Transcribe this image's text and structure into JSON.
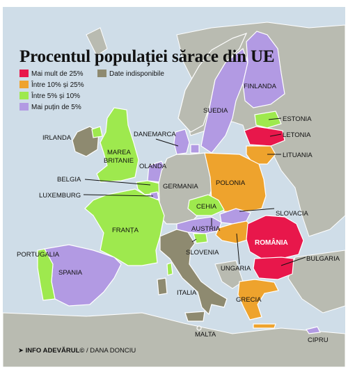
{
  "title": "Procentul populației sărace din UE",
  "legend": [
    {
      "label": "Mai mult de 25%",
      "color": "#e8174b"
    },
    {
      "label": "Între 10% și 25%",
      "color": "#eea32d"
    },
    {
      "label": "Între 5% și 10%",
      "color": "#9ee94e"
    },
    {
      "label": "Mai puțin de 5%",
      "color": "#b29ae3"
    },
    {
      "label": "Date indisponibile",
      "color": "#8e8a70"
    }
  ],
  "colors": {
    "sea": "#cfdde8",
    "land": "#b9bbb1",
    "border": "#ffffff"
  },
  "countries": {
    "irlanda": "IRLANDA",
    "marea_britanie": "MAREA BRITANIE",
    "danemarca": "DANEMARCA",
    "olanda": "OLANDA",
    "belgia": "BELGIA",
    "luxemburg": "LUXEMBURG",
    "germania": "GERMANIA",
    "franta": "FRANȚA",
    "portugalia": "PORTUGALIA",
    "spania": "SPANIA",
    "italia": "ITALIA",
    "malta": "MALTA",
    "austria": "AUSTRIA",
    "slovenia": "SLOVENIA",
    "cehia": "CEHIA",
    "polonia": "POLONIA",
    "slovacia": "SLOVACIA",
    "ungaria": "UNGARIA",
    "romania": "ROMÂNIA",
    "bulgaria": "BULGARIA",
    "grecia": "GRECIA",
    "cipru": "CIPRU",
    "suedia": "SUEDIA",
    "finlanda": "FINLANDA",
    "estonia": "ESTONIA",
    "letonia": "LETONIA",
    "lituania": "LITUANIA"
  },
  "footer": {
    "brand": "INFO ADEVĂRUL©",
    "author": " / DANA DONCIU"
  }
}
